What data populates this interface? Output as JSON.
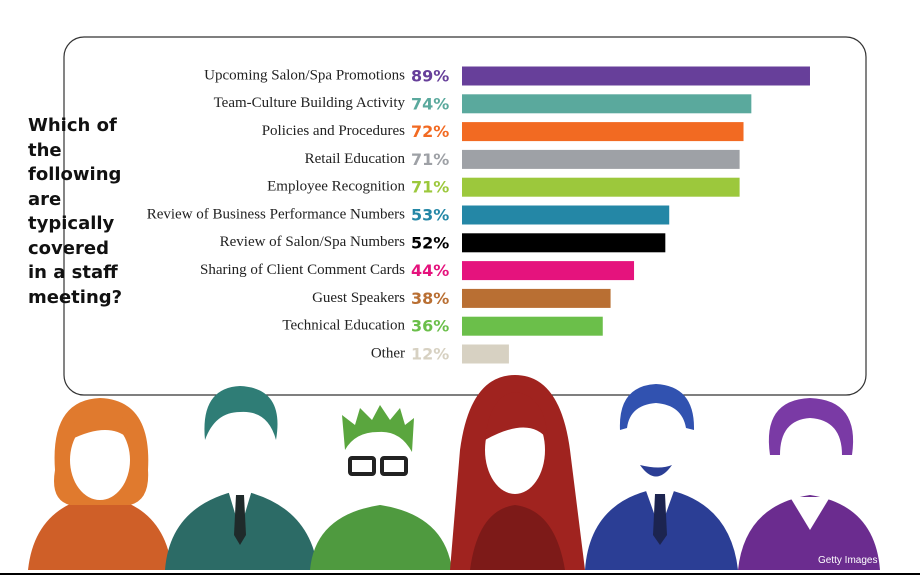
{
  "chart_data": {
    "type": "bar",
    "orientation": "horizontal",
    "title": "Which of the following are typically covered in a staff meeting?",
    "categories": [
      "Upcoming Salon/Spa Promotions",
      "Team-Culture Building Activity",
      "Policies and Procedures",
      "Retail Education",
      "Employee Recognition",
      "Review of Business Performance Numbers",
      "Review of Salon/Spa Numbers",
      "Sharing of Client Comment Cards",
      "Guest Speakers",
      "Technical Education",
      "Other"
    ],
    "values": [
      89,
      74,
      72,
      71,
      71,
      53,
      52,
      44,
      38,
      36,
      12
    ],
    "value_labels": [
      "89%",
      "74%",
      "72%",
      "71%",
      "71%",
      "53%",
      "52%",
      "44%",
      "38%",
      "36%",
      "12%"
    ],
    "colors": [
      "#673f9a",
      "#5aa99d",
      "#f26a22",
      "#9ea1a6",
      "#9cc83c",
      "#2487a6",
      "#000000",
      "#e5137d",
      "#b96f33",
      "#6bbf4a",
      "#d7d1c2"
    ],
    "credit": "Getty Images"
  }
}
